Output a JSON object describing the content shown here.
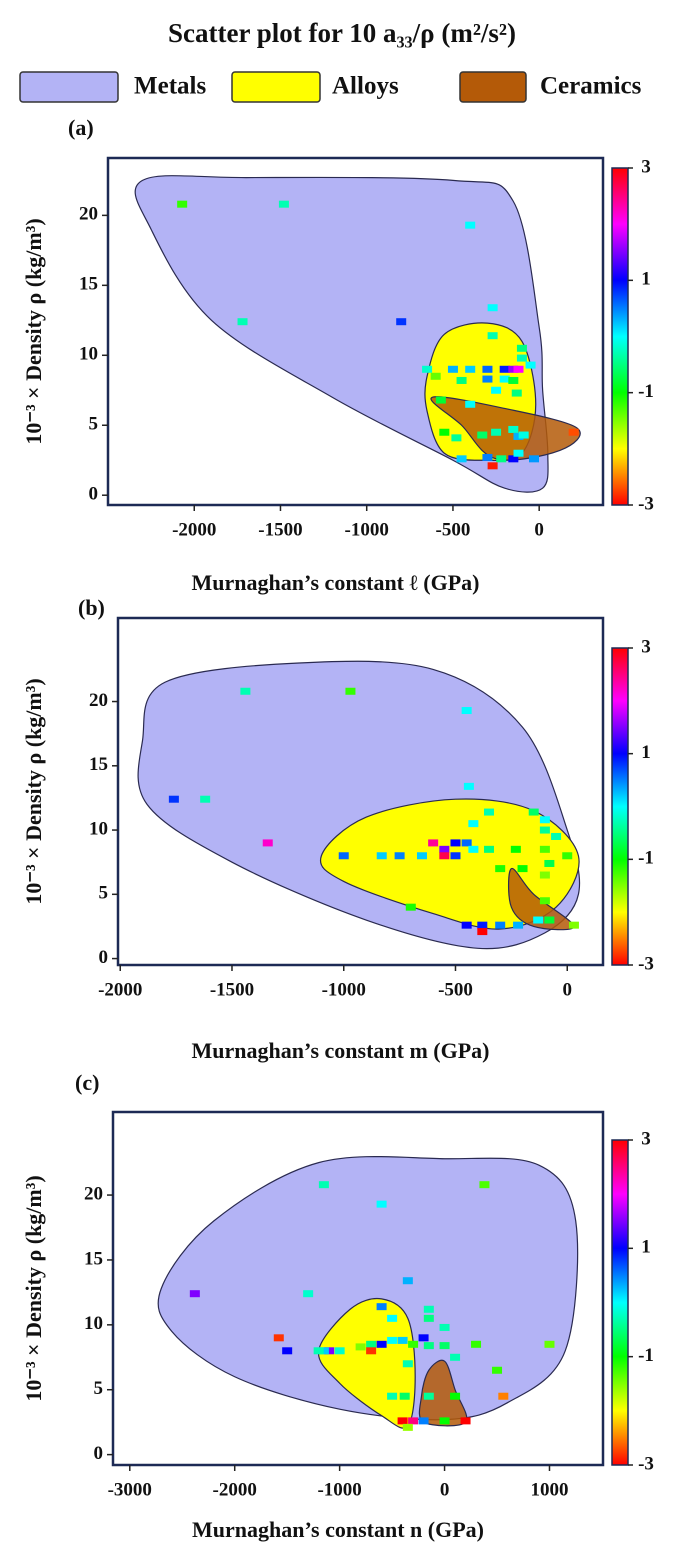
{
  "title": "Scatter plot  for  10 a₃₃/ρ (m²/s²)",
  "legend": [
    {
      "name": "Metals",
      "color": "#b3b3f5"
    },
    {
      "name": "Alloys",
      "color": "#ffff00"
    },
    {
      "name": "Ceramics",
      "color": "#b45a08"
    }
  ],
  "chart_data": [
    {
      "type": "scatter",
      "panel": "(a)",
      "xlabel": "Murnaghan’s constant ℓ (GPa)",
      "ylabel": "10⁻³ × Density ρ (kg/m³)",
      "xlim": [
        -2500,
        370
      ],
      "ylim": [
        -0.7,
        24.1
      ],
      "xticks": [
        -2000,
        -1500,
        -1000,
        -500,
        0
      ],
      "yticks": [
        0,
        5,
        10,
        15,
        20
      ],
      "clim": [
        -3,
        3
      ],
      "cticks": [
        -3,
        -1,
        1,
        3
      ],
      "colormap": "hsv",
      "regions": [
        {
          "x": [
            -2300,
            -1700,
            -500,
            -150,
            0,
            20,
            50,
            20,
            -200,
            -500,
            -1200,
            -1900,
            -2250
          ],
          "y": [
            22.5,
            22.7,
            22.5,
            21,
            12,
            7.5,
            3,
            0.5,
            0.5,
            2.5,
            7,
            12.5,
            19
          ]
        },
        {
          "x": [
            -650,
            -550,
            -300,
            -100,
            -20,
            -100,
            -300,
            -550,
            -650
          ],
          "y": [
            8.5,
            11.5,
            12.3,
            11,
            6.5,
            3,
            2.5,
            3,
            6
          ]
        },
        {
          "x": [
            -620,
            -200,
            220,
            120,
            -250,
            -450
          ],
          "y": [
            7,
            6.2,
            4.8,
            3.2,
            2.6,
            5
          ]
        }
      ],
      "points": {
        "x": [
          -2070,
          -1480,
          -400,
          -1720,
          -800,
          -270,
          -270,
          -100,
          -100,
          -50,
          -650,
          -500,
          -400,
          -300,
          -200,
          -150,
          -120,
          -600,
          -450,
          -300,
          -200,
          -150,
          -250,
          -130,
          -570,
          -400,
          -550,
          -480,
          -330,
          -250,
          -150,
          -120,
          -90,
          -300,
          -220,
          -150,
          -30,
          -270,
          -120,
          200,
          -450
        ],
        "y": [
          20.8,
          20.8,
          19.3,
          12.4,
          12.4,
          13.4,
          11.4,
          10.5,
          9.8,
          9.3,
          9,
          9,
          9,
          9,
          9,
          9,
          9,
          8.5,
          8.2,
          8.3,
          8.3,
          8.2,
          7.5,
          7.3,
          6.8,
          6.5,
          4.5,
          4.1,
          4.3,
          4.5,
          4.7,
          4.2,
          4.3,
          2.7,
          2.6,
          2.6,
          2.6,
          2.1,
          3,
          4.5,
          2.6
        ],
        "c": [
          -1.2,
          -0.3,
          0,
          -0.3,
          0.8,
          0,
          -0.3,
          -0.5,
          -0.3,
          0,
          -0.2,
          0.3,
          0.2,
          0.6,
          0.9,
          1.6,
          2,
          -1.4,
          -0.5,
          0.5,
          0,
          -0.8,
          0,
          -0.5,
          -0.8,
          0,
          -1,
          -0.4,
          -0.6,
          -0.3,
          -0.2,
          0.3,
          -0.1,
          0.5,
          -0.5,
          1,
          0.4,
          -2.9,
          0,
          -2.7,
          0.2
        ]
      }
    },
    {
      "type": "scatter",
      "panel": "(b)",
      "xlabel": "Murnaghan’s constant m (GPa)",
      "ylabel": "10⁻³ × Density ρ (kg/m³)",
      "xlim": [
        -2010,
        160
      ],
      "ylim": [
        -0.5,
        26.5
      ],
      "xticks": [
        -2000,
        -1500,
        -1000,
        -500,
        0
      ],
      "yticks": [
        0,
        5,
        10,
        15,
        20
      ],
      "clim": [
        -3,
        3
      ],
      "cticks": [
        -3,
        -1,
        1,
        3
      ],
      "colormap": "hsv",
      "regions": [
        {
          "x": [
            -1900,
            -1800,
            -1200,
            -600,
            -200,
            0,
            50,
            -100,
            -400,
            -900,
            -1500,
            -1880
          ],
          "y": [
            17,
            21.5,
            23,
            22.5,
            18,
            10,
            5,
            2,
            0.8,
            3,
            7.5,
            12
          ]
        },
        {
          "x": [
            -1100,
            -900,
            -500,
            -150,
            50,
            -50,
            -300,
            -600,
            -1000
          ],
          "y": [
            8,
            11,
            12.4,
            11.5,
            8,
            4,
            2.3,
            3.5,
            6
          ]
        },
        {
          "x": [
            -250,
            -150,
            30,
            -150,
            -250
          ],
          "y": [
            7,
            5,
            2.5,
            2.5,
            4
          ]
        }
      ],
      "points": {
        "x": [
          -1440,
          -970,
          -450,
          -440,
          -1760,
          -1620,
          -350,
          -150,
          -100,
          -1340,
          -420,
          -600,
          -500,
          -450,
          -550,
          -100,
          -50,
          -1000,
          -830,
          -750,
          -650,
          -550,
          -500,
          -420,
          -350,
          -230,
          -100,
          0,
          -80,
          -300,
          -200,
          -100,
          -700,
          -100,
          -450,
          -380,
          -300,
          -220,
          -130,
          -380,
          30,
          -80
        ],
        "y": [
          20.8,
          20.8,
          19.3,
          13.4,
          12.4,
          12.4,
          11.4,
          11.4,
          10.8,
          9,
          10.5,
          9,
          9,
          9,
          8.5,
          10,
          9.5,
          8,
          8,
          8,
          8,
          8,
          8,
          8.5,
          8.5,
          8.5,
          8.5,
          8,
          7.4,
          7,
          7,
          6.5,
          4,
          4.5,
          2.6,
          2.6,
          2.6,
          2.6,
          3,
          2.1,
          2.6,
          3
        ],
        "c": [
          -0.3,
          -1.2,
          0,
          0,
          0.8,
          -0.3,
          -0.3,
          -0.6,
          0,
          2.2,
          0,
          2.4,
          1,
          0.6,
          1.5,
          -0.4,
          -0.3,
          0.6,
          0.2,
          0.5,
          0.2,
          2.7,
          0.8,
          0,
          -0.5,
          -1,
          -1.3,
          -1.2,
          -0.7,
          -1.1,
          -1,
          -1.5,
          -1.1,
          -1.3,
          1,
          0.9,
          0.5,
          0.3,
          0,
          -3,
          -1.5,
          -0.8
        ]
      }
    },
    {
      "type": "scatter",
      "panel": "(c)",
      "xlabel": "Murnaghan’s constant n (GPa)",
      "ylabel": "10⁻³ × Density ρ (kg/m³)",
      "xlim": [
        -3160,
        1510
      ],
      "ylim": [
        -0.8,
        26.4
      ],
      "xticks": [
        -3000,
        -2000,
        -1000,
        0,
        1000
      ],
      "yticks": [
        0,
        5,
        10,
        15,
        20
      ],
      "clim": [
        -3,
        3
      ],
      "cticks": [
        -3,
        -1,
        1,
        3
      ],
      "colormap": "hsv",
      "regions": [
        {
          "x": [
            -2700,
            -2200,
            -1200,
            0,
            900,
            1250,
            1150,
            600,
            0,
            -1000,
            -2000,
            -2600
          ],
          "y": [
            12.8,
            18,
            22.5,
            22.8,
            22.3,
            18,
            8,
            4,
            2.7,
            3.5,
            6,
            9.5
          ]
        },
        {
          "x": [
            -1200,
            -900,
            -600,
            -350,
            -280,
            -350,
            -600,
            -1000
          ],
          "y": [
            8,
            11.2,
            12,
            10.5,
            6,
            2.2,
            3,
            5.5
          ]
        },
        {
          "x": [
            -150,
            0,
            100,
            200,
            -200,
            -220
          ],
          "y": [
            6.5,
            7.2,
            5,
            2.5,
            2.5,
            4.5
          ]
        }
      ],
      "points": {
        "x": [
          -1150,
          380,
          -600,
          -1300,
          -2380,
          -350,
          -600,
          -150,
          -150,
          -500,
          -1580,
          -1100,
          -1000,
          -1150,
          -1200,
          -1500,
          -800,
          -700,
          -600,
          -500,
          -400,
          -300,
          -200,
          -150,
          0,
          0,
          100,
          300,
          -700,
          1000,
          -350,
          -600,
          -500,
          -380,
          -150,
          100,
          500,
          560,
          -400,
          -300,
          -200,
          0,
          -350,
          200
        ],
        "y": [
          20.8,
          20.8,
          19.3,
          12.4,
          12.4,
          13.4,
          11.4,
          11.2,
          10.5,
          10.5,
          9,
          8,
          8,
          8,
          8,
          8,
          8.3,
          8.5,
          8.5,
          8.8,
          8.8,
          8.5,
          9,
          8.4,
          9.8,
          8.4,
          7.5,
          8.5,
          8,
          8.5,
          7,
          4.5,
          4.5,
          4.5,
          4.5,
          4.5,
          6.5,
          4.5,
          2.6,
          2.6,
          2.6,
          2.6,
          2.1,
          2.6
        ],
        "c": [
          -0.3,
          -1.3,
          0,
          -0.2,
          1.5,
          0.3,
          0.5,
          -0.3,
          -0.5,
          0,
          -2.8,
          1.5,
          -0.2,
          0.2,
          -0.3,
          1,
          -1.5,
          -0.5,
          1,
          0,
          0.2,
          -1.2,
          1,
          -0.5,
          -0.3,
          -0.6,
          -0.3,
          -1.2,
          -2.8,
          -1.4,
          -0.3,
          -2,
          -0.3,
          -0.6,
          -0.4,
          -1,
          -1.2,
          -2.5,
          -3,
          2.5,
          0.5,
          -1,
          -1.6,
          -3
        ]
      }
    }
  ]
}
